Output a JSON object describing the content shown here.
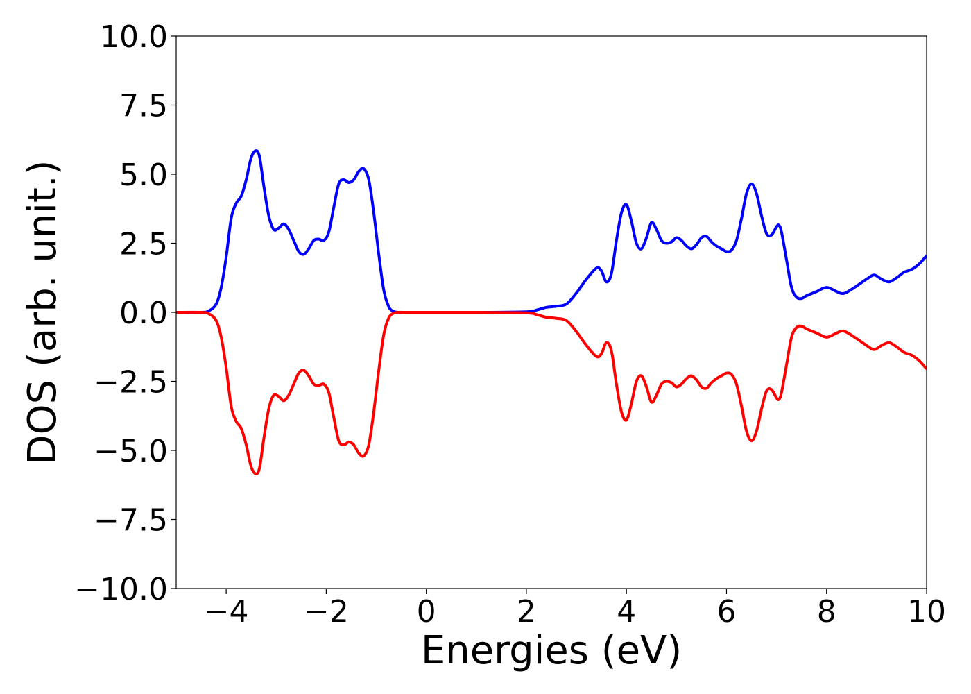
{
  "chart_data": {
    "type": "line",
    "title": "",
    "xlabel": "Energies (eV)",
    "ylabel": "DOS (arb. unit.)",
    "xlim": [
      -5,
      10
    ],
    "ylim": [
      -10,
      10
    ],
    "xticks": [
      -4,
      -2,
      0,
      2,
      4,
      6,
      8,
      10
    ],
    "yticks": [
      10.0,
      7.5,
      5.0,
      2.5,
      0.0,
      -2.5,
      -5.0,
      -7.5,
      -10.0
    ],
    "xtick_labels": [
      "−4",
      "−2",
      "0",
      "2",
      "4",
      "6",
      "8",
      "10"
    ],
    "ytick_labels": [
      "10.0",
      "7.5",
      "5.0",
      "2.5",
      "0.0",
      "−2.5",
      "−5.0",
      "−7.5",
      "−10.0"
    ],
    "grid": false,
    "legend": "none",
    "series": [
      {
        "color": "#0000ff",
        "x": [
          -5,
          -4.5,
          -4.35,
          -4.2,
          -4.1,
          -4.0,
          -3.9,
          -3.8,
          -3.7,
          -3.6,
          -3.5,
          -3.4,
          -3.33,
          -3.25,
          -3.15,
          -3.05,
          -2.95,
          -2.85,
          -2.75,
          -2.65,
          -2.55,
          -2.45,
          -2.35,
          -2.25,
          -2.15,
          -2.05,
          -1.95,
          -1.85,
          -1.75,
          -1.65,
          -1.55,
          -1.45,
          -1.35,
          -1.25,
          -1.15,
          -1.05,
          -0.95,
          -0.85,
          -0.75,
          -0.65,
          -0.55,
          -0.4,
          0,
          1,
          2,
          2.2,
          2.4,
          2.6,
          2.8,
          3.0,
          3.2,
          3.4,
          3.5,
          3.6,
          3.7,
          3.8,
          3.9,
          4.0,
          4.1,
          4.2,
          4.3,
          4.4,
          4.5,
          4.6,
          4.7,
          4.8,
          4.9,
          5.0,
          5.1,
          5.2,
          5.3,
          5.4,
          5.5,
          5.6,
          5.7,
          5.8,
          5.9,
          6.0,
          6.1,
          6.2,
          6.3,
          6.4,
          6.5,
          6.6,
          6.7,
          6.8,
          6.9,
          7.0,
          7.05,
          7.1,
          7.2,
          7.3,
          7.4,
          7.5,
          7.6,
          7.8,
          8.0,
          8.2,
          8.3,
          8.4,
          8.6,
          8.8,
          8.95,
          9.1,
          9.25,
          9.4,
          9.55,
          9.7,
          9.85,
          10.0
        ],
        "y": [
          0,
          0,
          0.05,
          0.3,
          0.9,
          2.0,
          3.4,
          3.95,
          4.2,
          4.8,
          5.6,
          5.85,
          5.6,
          4.6,
          3.5,
          3.0,
          3.05,
          3.2,
          3.0,
          2.6,
          2.2,
          2.1,
          2.3,
          2.6,
          2.65,
          2.6,
          2.9,
          3.8,
          4.65,
          4.8,
          4.7,
          4.8,
          5.1,
          5.2,
          4.8,
          3.6,
          2.1,
          0.8,
          0.2,
          0.03,
          0,
          0,
          0,
          0,
          0.02,
          0.08,
          0.18,
          0.22,
          0.3,
          0.7,
          1.2,
          1.6,
          1.5,
          1.1,
          1.4,
          2.6,
          3.6,
          3.9,
          3.3,
          2.5,
          2.3,
          2.7,
          3.25,
          3.0,
          2.6,
          2.5,
          2.55,
          2.7,
          2.6,
          2.4,
          2.3,
          2.45,
          2.7,
          2.75,
          2.55,
          2.4,
          2.3,
          2.2,
          2.25,
          2.6,
          3.4,
          4.3,
          4.65,
          4.3,
          3.5,
          2.85,
          2.8,
          3.1,
          3.15,
          2.9,
          1.9,
          0.9,
          0.55,
          0.5,
          0.6,
          0.75,
          0.9,
          0.75,
          0.68,
          0.72,
          0.95,
          1.2,
          1.35,
          1.2,
          1.1,
          1.25,
          1.45,
          1.55,
          1.75,
          2.05
        ]
      },
      {
        "color": "#ff0000",
        "x": [
          -5,
          -4.5,
          -4.35,
          -4.2,
          -4.1,
          -4.0,
          -3.9,
          -3.8,
          -3.7,
          -3.6,
          -3.5,
          -3.4,
          -3.33,
          -3.25,
          -3.15,
          -3.05,
          -2.95,
          -2.85,
          -2.75,
          -2.65,
          -2.55,
          -2.45,
          -2.35,
          -2.25,
          -2.15,
          -2.05,
          -1.95,
          -1.85,
          -1.75,
          -1.65,
          -1.55,
          -1.45,
          -1.35,
          -1.25,
          -1.15,
          -1.05,
          -0.95,
          -0.85,
          -0.75,
          -0.65,
          -0.55,
          -0.4,
          0,
          1,
          2,
          2.2,
          2.4,
          2.6,
          2.8,
          3.0,
          3.2,
          3.4,
          3.5,
          3.6,
          3.7,
          3.8,
          3.9,
          4.0,
          4.1,
          4.2,
          4.3,
          4.4,
          4.5,
          4.6,
          4.7,
          4.8,
          4.9,
          5.0,
          5.1,
          5.2,
          5.3,
          5.4,
          5.5,
          5.6,
          5.7,
          5.8,
          5.9,
          6.0,
          6.1,
          6.2,
          6.3,
          6.4,
          6.5,
          6.6,
          6.7,
          6.8,
          6.9,
          7.0,
          7.05,
          7.1,
          7.2,
          7.3,
          7.4,
          7.5,
          7.6,
          7.8,
          8.0,
          8.2,
          8.3,
          8.4,
          8.6,
          8.8,
          8.95,
          9.1,
          9.25,
          9.4,
          9.55,
          9.7,
          9.85,
          10.0
        ],
        "y": [
          0,
          0,
          -0.05,
          -0.3,
          -0.9,
          -2.0,
          -3.4,
          -3.95,
          -4.2,
          -4.8,
          -5.6,
          -5.85,
          -5.6,
          -4.6,
          -3.5,
          -3.0,
          -3.05,
          -3.2,
          -3.0,
          -2.6,
          -2.2,
          -2.1,
          -2.3,
          -2.6,
          -2.65,
          -2.6,
          -2.9,
          -3.8,
          -4.65,
          -4.8,
          -4.7,
          -4.8,
          -5.1,
          -5.2,
          -4.8,
          -3.6,
          -2.1,
          -0.8,
          -0.2,
          -0.03,
          0,
          0,
          0,
          0,
          -0.02,
          -0.08,
          -0.18,
          -0.22,
          -0.3,
          -0.7,
          -1.2,
          -1.6,
          -1.5,
          -1.1,
          -1.4,
          -2.6,
          -3.6,
          -3.9,
          -3.3,
          -2.5,
          -2.3,
          -2.7,
          -3.25,
          -3.0,
          -2.6,
          -2.5,
          -2.55,
          -2.7,
          -2.6,
          -2.4,
          -2.3,
          -2.45,
          -2.7,
          -2.75,
          -2.55,
          -2.4,
          -2.3,
          -2.2,
          -2.25,
          -2.6,
          -3.4,
          -4.3,
          -4.65,
          -4.3,
          -3.5,
          -2.85,
          -2.8,
          -3.1,
          -3.15,
          -2.9,
          -1.9,
          -0.9,
          -0.55,
          -0.5,
          -0.6,
          -0.75,
          -0.9,
          -0.75,
          -0.68,
          -0.72,
          -0.95,
          -1.2,
          -1.35,
          -1.2,
          -1.1,
          -1.25,
          -1.45,
          -1.55,
          -1.75,
          -2.05
        ]
      }
    ]
  }
}
